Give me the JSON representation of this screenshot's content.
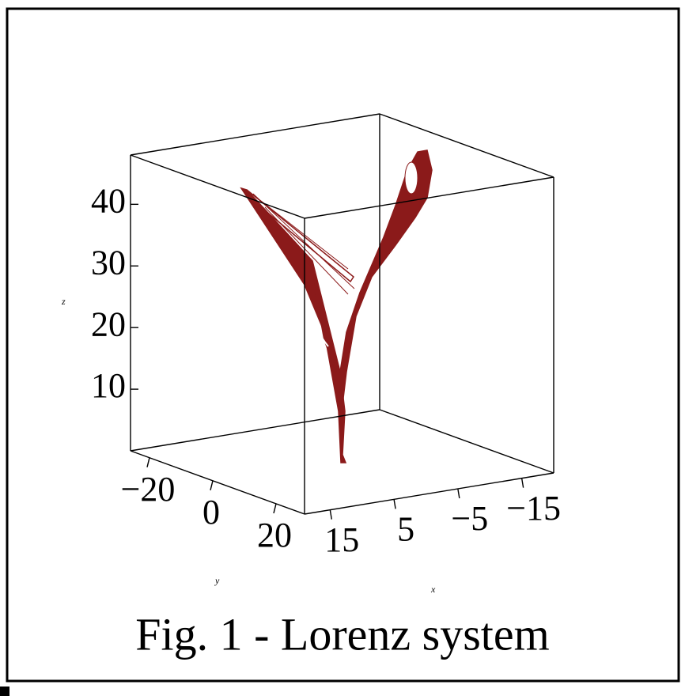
{
  "chart_data": {
    "type": "line3d",
    "caption": "Fig. 1 - Lorenz system",
    "xlabel": "x",
    "ylabel": "y",
    "zlabel": "z",
    "color": "#8b1a1a",
    "xlim": [
      19,
      -20
    ],
    "ylim": [
      -26,
      29
    ],
    "zlim": [
      0,
      48
    ],
    "xticks": [
      15,
      5,
      {
        "value": -5,
        "label": "−5"
      },
      {
        "value": -15,
        "label": "−15"
      }
    ],
    "yticks": [
      {
        "value": -20,
        "label": "−20"
      },
      0,
      20
    ],
    "zticks": [
      10,
      20,
      30,
      40
    ]
  }
}
